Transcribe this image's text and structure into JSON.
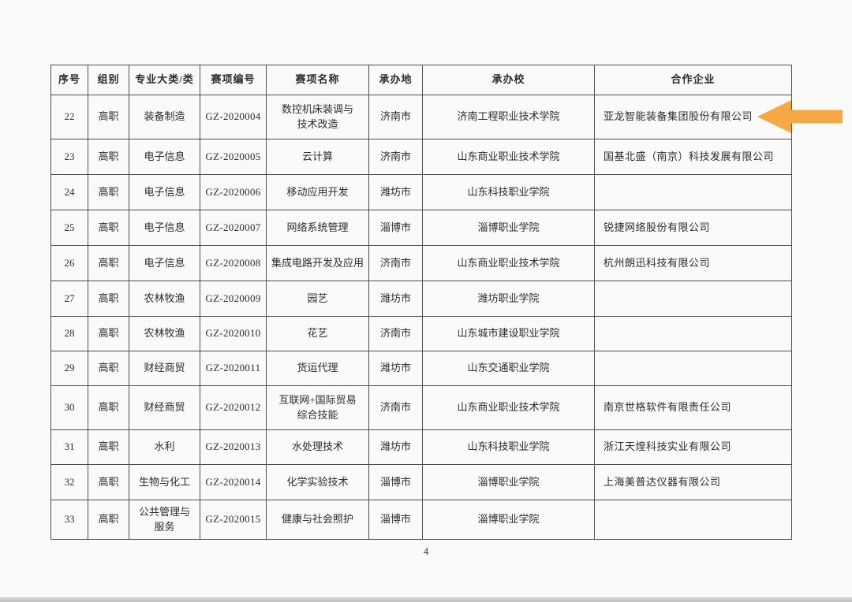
{
  "page": {
    "number": "4"
  },
  "table": {
    "columns": [
      {
        "key": "no",
        "label": "序号"
      },
      {
        "key": "group",
        "label": "组别"
      },
      {
        "key": "category",
        "label": "专业大类/类"
      },
      {
        "key": "code",
        "label": "赛项编号"
      },
      {
        "key": "name",
        "label": "赛项名称"
      },
      {
        "key": "host_city",
        "label": "承办地"
      },
      {
        "key": "host_school",
        "label": "承办校"
      },
      {
        "key": "partner",
        "label": "合作企业"
      }
    ],
    "rows": [
      {
        "no": "22",
        "group": "高职",
        "category": "装备制造",
        "code": "GZ-2020004",
        "name": "数控机床装调与\n技术改造",
        "host_city": "济南市",
        "host_school": "济南工程职业技术学院",
        "partner": "亚龙智能装备集团股份有限公司"
      },
      {
        "no": "23",
        "group": "高职",
        "category": "电子信息",
        "code": "GZ-2020005",
        "name": "云计算",
        "host_city": "济南市",
        "host_school": "山东商业职业技术学院",
        "partner": "国基北盛（南京）科技发展有限公司"
      },
      {
        "no": "24",
        "group": "高职",
        "category": "电子信息",
        "code": "GZ-2020006",
        "name": "移动应用开发",
        "host_city": "潍坊市",
        "host_school": "山东科技职业学院",
        "partner": ""
      },
      {
        "no": "25",
        "group": "高职",
        "category": "电子信息",
        "code": "GZ-2020007",
        "name": "网络系统管理",
        "host_city": "淄博市",
        "host_school": "淄博职业学院",
        "partner": "锐捷网络股份有限公司"
      },
      {
        "no": "26",
        "group": "高职",
        "category": "电子信息",
        "code": "GZ-2020008",
        "name": "集成电路开发及应用",
        "host_city": "济南市",
        "host_school": "山东商业职业技术学院",
        "partner": "杭州朗迅科技有限公司"
      },
      {
        "no": "27",
        "group": "高职",
        "category": "农林牧渔",
        "code": "GZ-2020009",
        "name": "园艺",
        "host_city": "潍坊市",
        "host_school": "潍坊职业学院",
        "partner": ""
      },
      {
        "no": "28",
        "group": "高职",
        "category": "农林牧渔",
        "code": "GZ-2020010",
        "name": "花艺",
        "host_city": "济南市",
        "host_school": "山东城市建设职业学院",
        "partner": ""
      },
      {
        "no": "29",
        "group": "高职",
        "category": "财经商贸",
        "code": "GZ-2020011",
        "name": "货运代理",
        "host_city": "潍坊市",
        "host_school": "山东交通职业学院",
        "partner": ""
      },
      {
        "no": "30",
        "group": "高职",
        "category": "财经商贸",
        "code": "GZ-2020012",
        "name": "互联网+国际贸易\n综合技能",
        "host_city": "济南市",
        "host_school": "山东商业职业技术学院",
        "partner": "南京世格软件有限责任公司"
      },
      {
        "no": "31",
        "group": "高职",
        "category": "水利",
        "code": "GZ-2020013",
        "name": "水处理技术",
        "host_city": "潍坊市",
        "host_school": "山东科技职业学院",
        "partner": "浙江天煌科技实业有限公司"
      },
      {
        "no": "32",
        "group": "高职",
        "category": "生物与化工",
        "code": "GZ-2020014",
        "name": "化学实验技术",
        "host_city": "淄博市",
        "host_school": "淄博职业学院",
        "partner": "上海美普达仪器有限公司"
      },
      {
        "no": "33",
        "group": "高职",
        "category": "公共管理与\n服务",
        "code": "GZ-2020015",
        "name": "健康与社会照护",
        "host_city": "淄博市",
        "host_school": "淄博职业学院",
        "partner": ""
      }
    ]
  },
  "annotation": {
    "arrow_icon": "orange-left-arrow",
    "arrow_color": "#f5a843"
  }
}
